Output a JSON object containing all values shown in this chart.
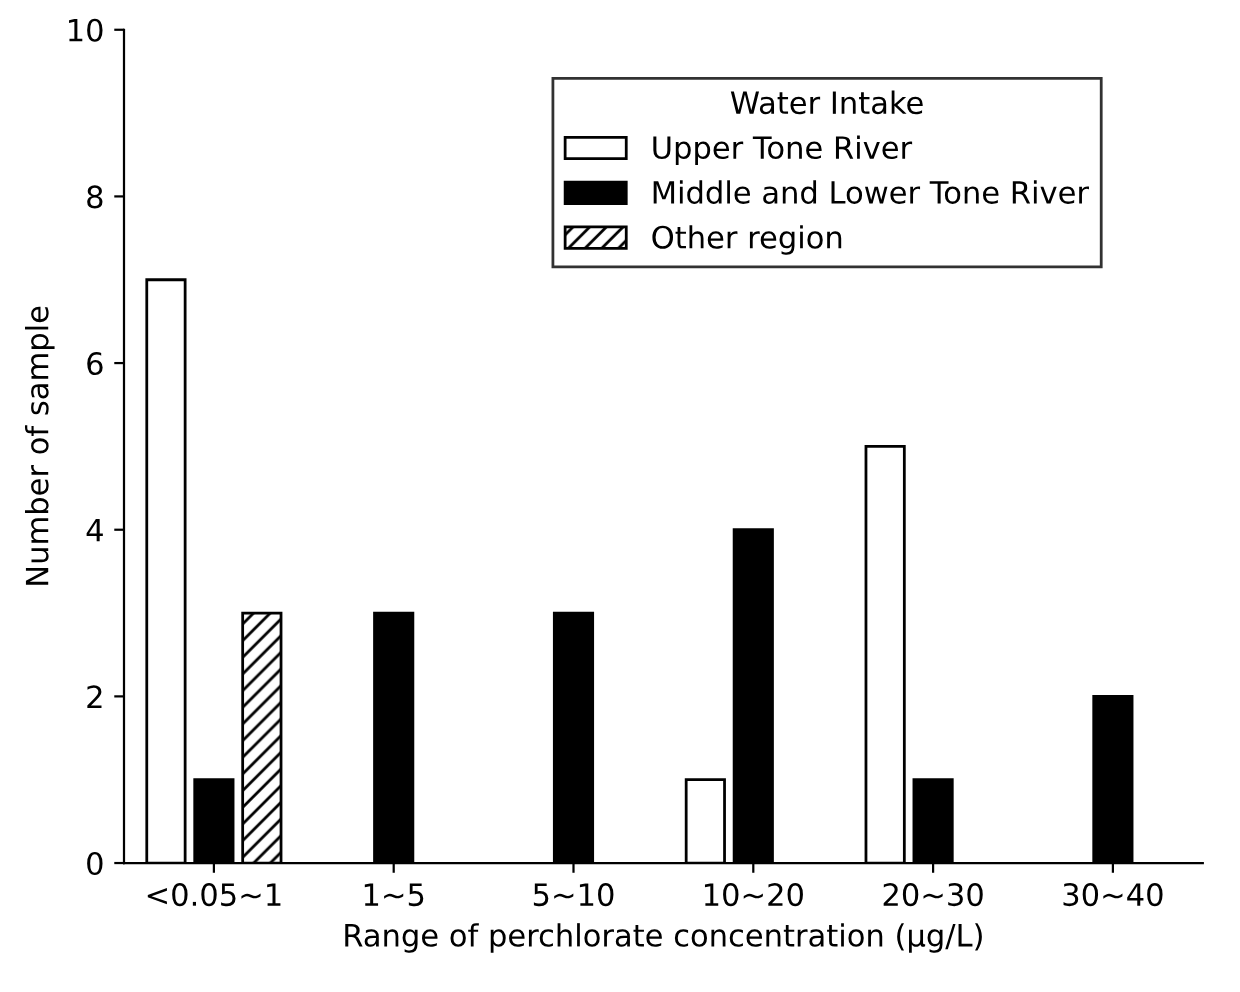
{
  "chart_data": {
    "type": "bar",
    "xlabel": "Range of perchlorate concentration (µg/L)",
    "ylabel": "Number of sample",
    "legend_title": "Water Intake",
    "categories": [
      "<0.05∼1",
      "1∼5",
      "5∼10",
      "10∼20",
      "20∼30",
      "30∼40"
    ],
    "series": [
      {
        "name": "Upper Tone River",
        "color": "#ffffff",
        "values": [
          7,
          null,
          null,
          1,
          5,
          null
        ]
      },
      {
        "name": "Middle and Lower Tone River",
        "color": "#000000",
        "values": [
          1,
          3,
          3,
          4,
          1,
          2
        ]
      },
      {
        "name": "Other region",
        "color": "#000000",
        "values": [
          3,
          null,
          null,
          null,
          null,
          null
        ]
      }
    ],
    "ylim": [
      0,
      10
    ],
    "yticks": [
      0,
      2,
      4,
      6,
      8,
      10
    ],
    "grid": false,
    "legend": "top right"
  }
}
